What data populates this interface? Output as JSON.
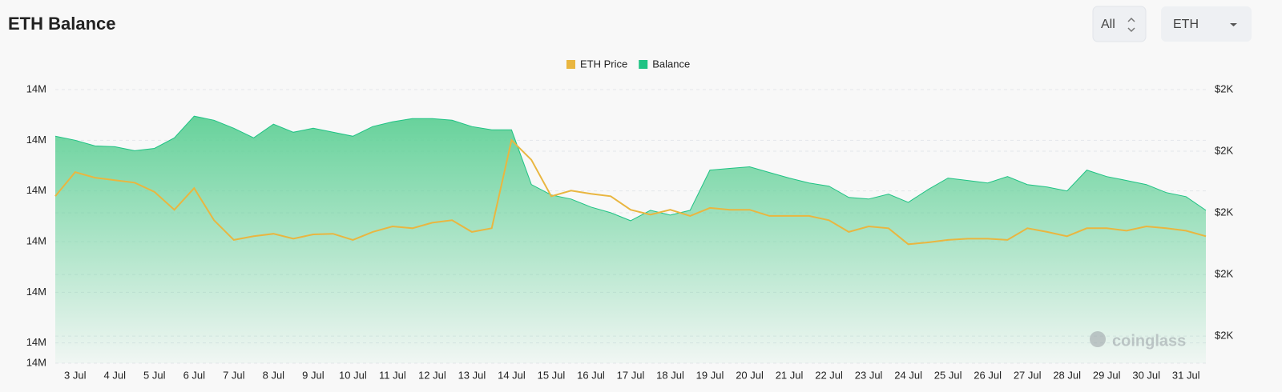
{
  "header": {
    "title": "ETH Balance",
    "range_button": "All",
    "asset_select": "ETH",
    "watermark": "coinglass"
  },
  "chart_data": {
    "type": "line",
    "categories": [
      null,
      "3 Jul",
      null,
      "4 Jul",
      null,
      "5 Jul",
      null,
      "6 Jul",
      null,
      "7 Jul",
      null,
      "8 Jul",
      null,
      "9 Jul",
      null,
      "10 Jul",
      null,
      "11 Jul",
      null,
      "12 Jul",
      null,
      "13 Jul",
      null,
      "14 Jul",
      null,
      "15 Jul",
      null,
      "16 Jul",
      null,
      "17 Jul",
      null,
      "18 Jul",
      null,
      "19 Jul",
      null,
      "20 Jul",
      null,
      "21 Jul",
      null,
      "22 Jul",
      null,
      "23 Jul",
      null,
      "24 Jul",
      null,
      "25 Jul",
      null,
      "26 Jul",
      null,
      "27 Jul",
      null,
      "28 Jul",
      null,
      "29 Jul",
      null,
      "30 Jul",
      null,
      "31 Jul",
      null
    ],
    "series": [
      {
        "name": "ETH Price",
        "color": "#e9b640",
        "axis": "y2",
        "values": [
          1927,
          1966,
          1957,
          1953,
          1949,
          1934,
          1905,
          1940,
          1888,
          1856,
          1862,
          1866,
          1858,
          1865,
          1866,
          1856,
          1869,
          1878,
          1875,
          1884,
          1888,
          1869,
          1875,
          2018,
          1986,
          1927,
          1936,
          1931,
          1927,
          1905,
          1897,
          1905,
          1895,
          1908,
          1905,
          1905,
          1895,
          1895,
          1895,
          1888,
          1869,
          1878,
          1875,
          1849,
          1852,
          1856,
          1858,
          1858,
          1856,
          1875,
          1869,
          1862,
          1875,
          1875,
          1871,
          1878,
          1875,
          1871,
          1862
        ]
      },
      {
        "name": "Balance",
        "color": "#1fc384",
        "values": [
          14354000,
          14350000,
          14344400,
          14343600,
          14339700,
          14342000,
          14352400,
          14373800,
          14369800,
          14361900,
          14352400,
          14365900,
          14357900,
          14361900,
          14357900,
          14354000,
          14363500,
          14368200,
          14371400,
          14371400,
          14369800,
          14363500,
          14360300,
          14360300,
          14306300,
          14296000,
          14292000,
          14284100,
          14278500,
          14270600,
          14280900,
          14276100,
          14280900,
          14320600,
          14322200,
          14323800,
          14318200,
          14312700,
          14307900,
          14304700,
          14293600,
          14292000,
          14296800,
          14288800,
          14301500,
          14312700,
          14310300,
          14307900,
          14314200,
          14306300,
          14303900,
          14300000,
          14320600,
          14314200,
          14310300,
          14306300,
          14298400,
          14294400,
          14280900
        ]
      }
    ],
    "ylim": [
      14130000,
      14400000
    ],
    "yticks": [
      {
        "value": 14400000,
        "label": "14M"
      },
      {
        "value": 14350000,
        "label": "14M"
      },
      {
        "value": 14300000,
        "label": "14M"
      },
      {
        "value": 14250000,
        "label": "14M"
      },
      {
        "value": 14200000,
        "label": "14M"
      },
      {
        "value": 14150000,
        "label": "14M"
      },
      {
        "value": 14130000,
        "label": "14M"
      }
    ],
    "y2lim": [
      1656,
      2100
    ],
    "y2ticks": [
      {
        "value": 2100,
        "label": "$2K"
      },
      {
        "value": 2000,
        "label": "$2K"
      },
      {
        "value": 1900,
        "label": "$2K"
      },
      {
        "value": 1800,
        "label": "$2K"
      },
      {
        "value": 1700,
        "label": "$2K"
      }
    ],
    "grid": true
  }
}
